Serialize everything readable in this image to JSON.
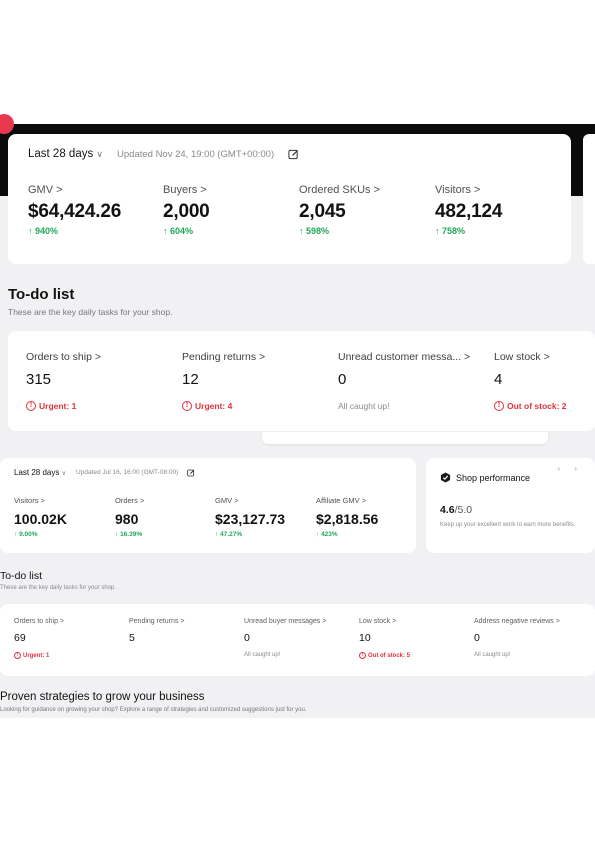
{
  "top_stats": {
    "period": "Last 28 days",
    "chevron": "∨",
    "updated": "Updated Nov 24, 19:00 (GMT+00:00)",
    "metrics": [
      {
        "label": "GMV >",
        "value": "$64,424.26",
        "change": "940%"
      },
      {
        "label": "Buyers >",
        "value": "2,000",
        "change": "604%"
      },
      {
        "label": "Ordered SKUs >",
        "value": "2,045",
        "change": "598%"
      },
      {
        "label": "Visitors >",
        "value": "482,124",
        "change": "758%"
      }
    ]
  },
  "todo_top": {
    "title": "To-do list",
    "subtitle": "These are the key daily tasks for your shop.",
    "items": [
      {
        "label": "Orders to ship >",
        "value": "315",
        "status": "Urgent: 1",
        "status_type": "urgent"
      },
      {
        "label": "Pending returns >",
        "value": "12",
        "status": "Urgent: 4",
        "status_type": "urgent"
      },
      {
        "label": "Unread customer messa... >",
        "value": "0",
        "status": "All caught up!",
        "status_type": "ok"
      },
      {
        "label": "Low stock >",
        "value": "4",
        "status": "Out of stock: 2",
        "status_type": "urgent"
      }
    ]
  },
  "second_stats": {
    "period": "Last 28 days",
    "chevron": "∨",
    "updated": "Updated Jul 16, 16:00 (GMT-08:00)",
    "metrics": [
      {
        "label": "Visitors >",
        "value": "100.02K",
        "change": "9.00%"
      },
      {
        "label": "Orders >",
        "value": "980",
        "change": "16.39%"
      },
      {
        "label": "GMV >",
        "value": "$23,127.73",
        "change": "47.27%"
      },
      {
        "label": "Affiliate GMV >",
        "value": "$2,818.56",
        "change": "423%"
      }
    ]
  },
  "shop_performance": {
    "title": "Shop performance",
    "score": "4.6",
    "max": "/5.0",
    "description": "Keep up your excellent work to earn more benefits.",
    "nav": "‹ ›"
  },
  "todo_bottom": {
    "title": "To-do list",
    "subtitle": "These are the key daily tasks for your shop.",
    "items": [
      {
        "label": "Orders to ship >",
        "value": "69",
        "status": "Urgent: 1",
        "status_type": "urgent"
      },
      {
        "label": "Pending returns >",
        "value": "5",
        "status": "",
        "status_type": "none"
      },
      {
        "label": "Unread buyer messages >",
        "value": "0",
        "status": "All caught up!",
        "status_type": "ok"
      },
      {
        "label": "Low stock >",
        "value": "10",
        "status": "Out of stock: 5",
        "status_type": "urgent"
      },
      {
        "label": "Address negative reviews >",
        "value": "0",
        "status": "All caught up!",
        "status_type": "ok"
      }
    ]
  },
  "proven": {
    "title": "Proven strategies to grow your business",
    "subtitle": "Looking for guidance on growing your shop? Explore a range of strategies and customized suggestions just for you."
  },
  "icons": {
    "up_arrow": "↑",
    "alert": "!"
  },
  "colors": {
    "positive": "#1ea85a",
    "urgent": "#e0323d",
    "brand_red": "#e8384f"
  }
}
